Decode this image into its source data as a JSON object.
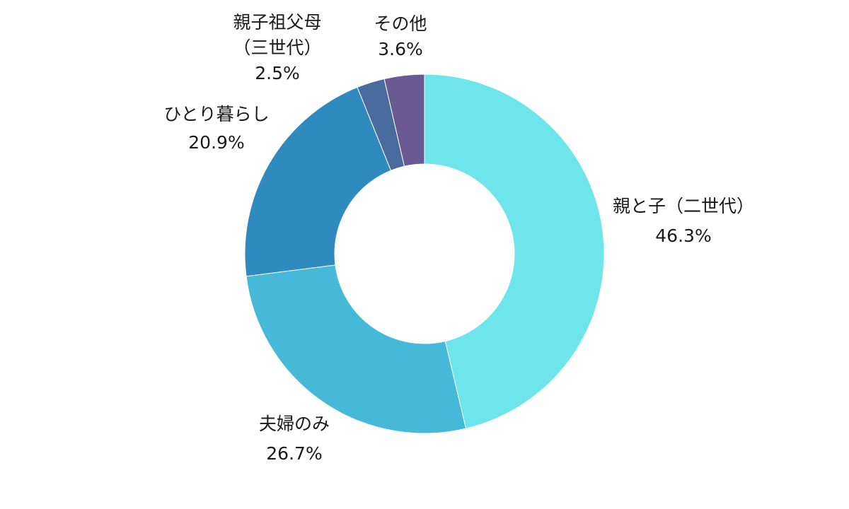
{
  "chart_data": {
    "type": "pie",
    "donut": true,
    "legend": "none",
    "categories": [
      "親と子（二世代）",
      "夫婦のみ",
      "ひとり暮らし",
      "親子祖父母（三世代）",
      "その他"
    ],
    "values": [
      46.3,
      26.7,
      20.9,
      2.5,
      3.6
    ],
    "value_labels": [
      "46.3%",
      "26.7%",
      "20.9%",
      "2.5%",
      "3.6%"
    ],
    "slices": [
      {
        "label_lines": [
          "親と子（二世代）"
        ],
        "value_label": "46.3%",
        "value": 46.3,
        "color": "#6ee5ea"
      },
      {
        "label_lines": [
          "夫婦のみ"
        ],
        "value_label": "26.7%",
        "value": 26.7,
        "color": "#45b9d7"
      },
      {
        "label_lines": [
          "ひとり暮らし"
        ],
        "value_label": "20.9%",
        "value": 20.9,
        "color": "#2f8bbd"
      },
      {
        "label_lines": [
          "親子祖父母",
          "（三世代）"
        ],
        "value_label": "2.5%",
        "value": 2.5,
        "color": "#4a6b9e"
      },
      {
        "label_lines": [
          "その他"
        ],
        "value_label": "3.6%",
        "value": 3.6,
        "color": "#6a5a94"
      }
    ]
  }
}
